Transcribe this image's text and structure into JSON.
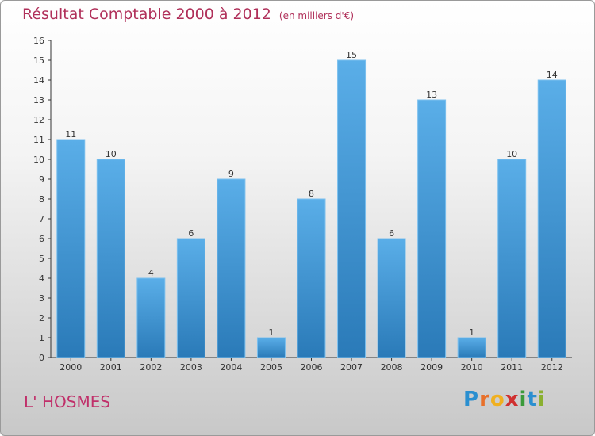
{
  "title": "Résultat Comptable 2000 à 2012",
  "subtitle": "(en milliers d'€)",
  "location": "L' HOSMES",
  "logo": {
    "text": "Proxiti",
    "letters": [
      {
        "ch": "P",
        "color": "#2a8fd0"
      },
      {
        "ch": "r",
        "color": "#e8702a"
      },
      {
        "ch": "o",
        "color": "#f0b020"
      },
      {
        "ch": "x",
        "color": "#d03030"
      },
      {
        "ch": "i",
        "color": "#3a9a3a"
      },
      {
        "ch": "t",
        "color": "#2a8fd0"
      },
      {
        "ch": "i",
        "color": "#8ab030"
      }
    ]
  },
  "colors": {
    "bar_top": "#5aaee8",
    "bar_bottom": "#2a7ab8",
    "title": "#b0305a",
    "axis": "#333333"
  },
  "chart_data": {
    "type": "bar",
    "title": "Résultat Comptable 2000 à 2012",
    "ylabel": "en milliers d'€",
    "xlabel": "",
    "categories": [
      "2000",
      "2001",
      "2002",
      "2003",
      "2004",
      "2005",
      "2006",
      "2007",
      "2008",
      "2009",
      "2010",
      "2011",
      "2012"
    ],
    "values": [
      11,
      10,
      4,
      6,
      9,
      1,
      8,
      15,
      6,
      13,
      1,
      10,
      14
    ],
    "ylim": [
      0,
      16
    ],
    "yticks": [
      0,
      1,
      2,
      3,
      4,
      5,
      6,
      7,
      8,
      9,
      10,
      11,
      12,
      13,
      14,
      15,
      16
    ],
    "grid": false,
    "data_labels": true
  }
}
